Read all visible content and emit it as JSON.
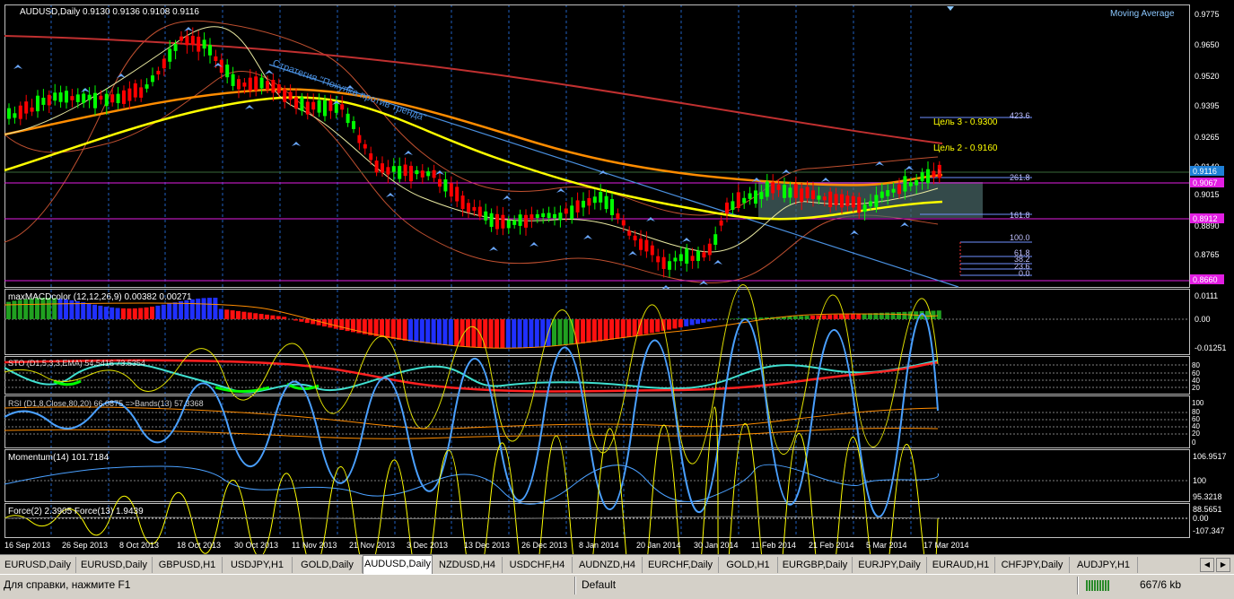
{
  "chart": {
    "symbol_header": "AUDUSD,Daily  0.9130 0.9136 0.9108 0.9116",
    "indicator_label": "Moving Average",
    "annotation": "Стратегия \"Покупка против тренда\"",
    "targets": [
      "Цель 3 - 0.9300",
      "Цель 2 - 0.9160"
    ],
    "fib_upper": [
      "423.6",
      "261.8",
      "161.8"
    ],
    "fib_lower": [
      "100.0",
      "61.8",
      "38.2",
      "23.6",
      "0.0"
    ],
    "price_scale": [
      "0.9775",
      "0.9650",
      "0.9520",
      "0.9395",
      "0.9265",
      "0.9140",
      "0.9015",
      "0.8890",
      "0.8765"
    ],
    "price_markers": [
      {
        "value": "0.9116",
        "color": "#1e7fd6"
      },
      {
        "value": "0.9067",
        "color": "#e21ee2"
      },
      {
        "value": "0.8912",
        "color": "#e21ee2"
      },
      {
        "value": "0.8660",
        "color": "#e21ee2"
      }
    ],
    "macd_label": "maxMACDcolor (12,12,26,9) 0.00382 0.00271",
    "macd_scale": [
      "0.0111",
      "0.00",
      "-0.01251"
    ],
    "stoch_label": "STO (D1,5,3,3,EMA) 54.5416 73.5354",
    "stoch_scale": [
      "80",
      "60",
      "40",
      "20"
    ],
    "rsi_label": "RSI (D1,8,Close,80,20) 66.0875  =>Bands(13) 57.3368",
    "rsi_scale": [
      "100",
      "80",
      "60",
      "40",
      "20",
      "0"
    ],
    "momentum_label": "Momentum(14) 101.7184",
    "momentum_scale": [
      "106.9517",
      "100",
      "95.3218"
    ],
    "force_label": "Force(2) 2.3905  Force(13) 1.9439",
    "force_scale": [
      "88.5651",
      "0.00",
      "-107.347"
    ],
    "dates": [
      "16 Sep 2013",
      "26 Sep 2013",
      "8 Oct 2013",
      "18 Oct 2013",
      "30 Oct 2013",
      "11 Nov 2013",
      "21 Nov 2013",
      "3 Dec 2013",
      "13 Dec 2013",
      "26 Dec 2013",
      "8 Jan 2014",
      "20 Jan 2014",
      "30 Jan 2014",
      "11 Feb 2014",
      "21 Feb 2014",
      "5 Mar 2014",
      "17 Mar 2014"
    ]
  },
  "tabs": [
    "EURUSD,Daily",
    "EURUSD,Daily",
    "GBPUSD,H1",
    "USDJPY,H1",
    "GOLD,Daily",
    "AUDUSD,Daily",
    "NZDUSD,H4",
    "USDCHF,H4",
    "AUDNZD,H4",
    "EURCHF,Daily",
    "GOLD,H1",
    "EURGBP,Daily",
    "EURJPY,Daily",
    "EURAUD,H1",
    "CHFJPY,Daily",
    "AUDJPY,H1"
  ],
  "active_tab": 5,
  "status": {
    "help": "Для справки, нажмите F1",
    "profile": "Default",
    "traffic": "667/6 kb"
  },
  "colors": {
    "bull": "#00ff00",
    "bear": "#ff0000",
    "grid": "#2060c0",
    "magenta": "#e21ee2",
    "yellow": "#ffff00",
    "orange": "#ff8c00"
  }
}
